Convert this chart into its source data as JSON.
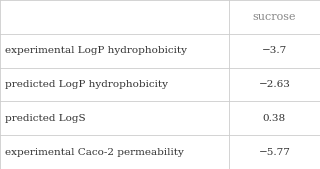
{
  "header": [
    "",
    "sucrose"
  ],
  "rows": [
    [
      "experimental LogP hydrophobicity",
      "−3.7"
    ],
    [
      "predicted LogP hydrophobicity",
      "−2.63"
    ],
    [
      "predicted LogS",
      "0.38"
    ],
    [
      "experimental Caco-2 permeability",
      "−5.77"
    ]
  ],
  "bg_color": "#ffffff",
  "line_color": "#cccccc",
  "text_color": "#333333",
  "header_text_color": "#888888",
  "font_size": 7.5,
  "header_font_size": 8.0,
  "col_split": 0.715
}
